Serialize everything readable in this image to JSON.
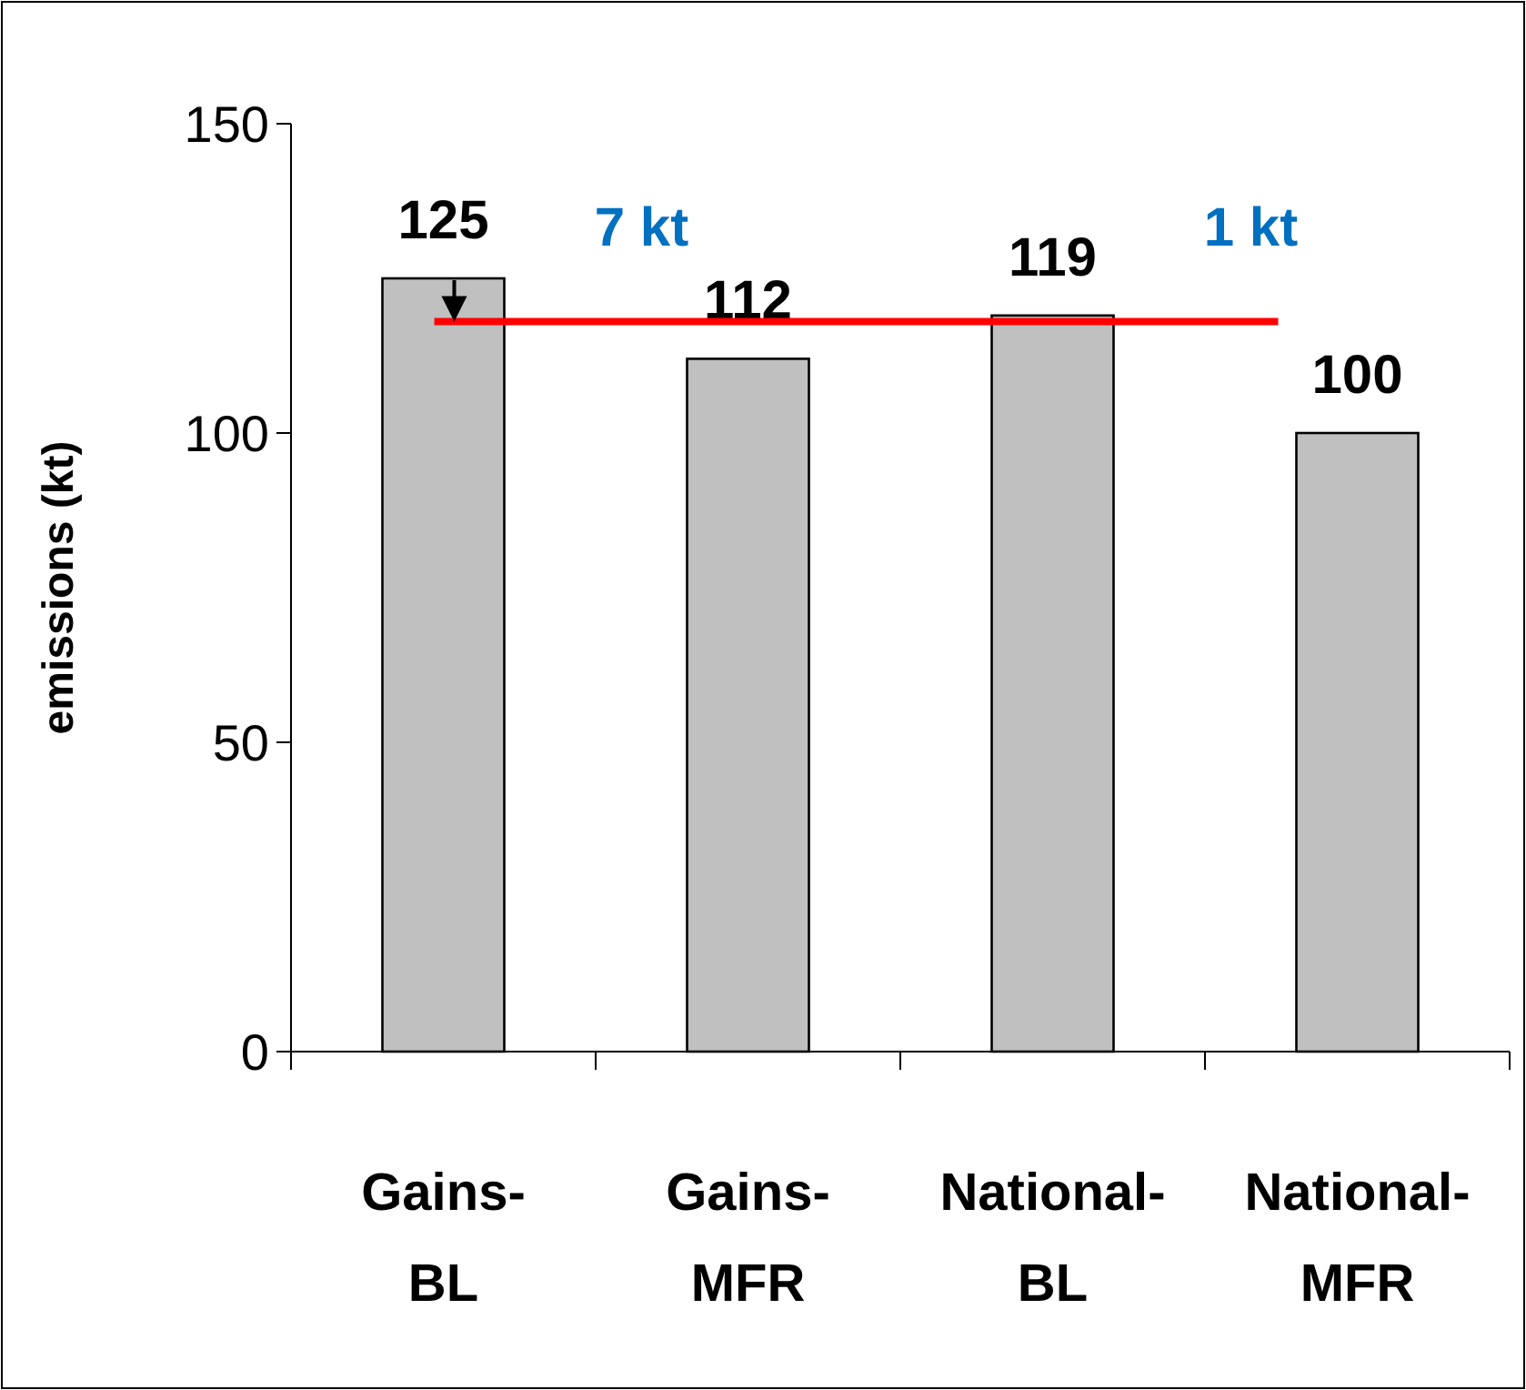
{
  "chart_data": {
    "type": "bar",
    "ylabel": "emissions (kt)",
    "categories": [
      "Gains-BL",
      "Gains-MFR",
      "National-BL",
      "National-MFR"
    ],
    "values": [
      125,
      112,
      119,
      100
    ],
    "color": "#c0c0c0",
    "data_labels": true,
    "ylim": [
      0,
      150
    ],
    "yticks": [
      0,
      50,
      100,
      150
    ],
    "grid": false,
    "ref_lines": [
      {
        "axis": "y",
        "value": 118,
        "color": "#ff0000"
      }
    ],
    "annotations": [
      "7 kt",
      "1 kt"
    ]
  }
}
